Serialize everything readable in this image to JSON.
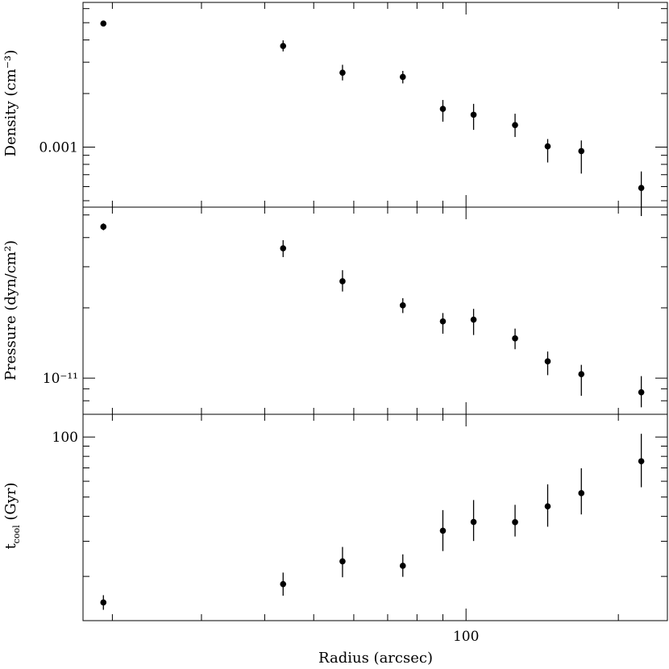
{
  "chart_data": {
    "type": "scatter",
    "xlabel": "Radius (arcsec)",
    "xscale": "log",
    "xlim": [
      17.5,
      250
    ],
    "x_ticks": [
      {
        "value": 100,
        "label": "100"
      }
    ],
    "panels": [
      {
        "id": "density",
        "ylabel": "Density (cm⁻³)",
        "yscale": "log",
        "ylim": [
          0.00046,
          0.0065
        ],
        "y_ticks": [
          {
            "value": 0.001,
            "label": "0.001"
          }
        ],
        "series": [
          {
            "x": [
              19.2,
              43.5,
              57,
              75,
              90,
              103.5,
              125,
              145,
              169,
              222
            ],
            "y": [
              0.00495,
              0.0037,
              0.00262,
              0.00248,
              0.00164,
              0.00152,
              0.00133,
              0.00101,
              0.00095,
              0.00059
            ],
            "yerr_lo": [
              0.00017,
              0.00025,
              0.00025,
              0.0002,
              0.00025,
              0.00027,
              0.00019,
              0.00019,
              0.00024,
              0.00018
            ],
            "yerr_hi": [
              0.00018,
              0.00028,
              0.00028,
              0.0002,
              0.0002,
              0.00023,
              0.00021,
              0.0001,
              0.00014,
              0.00014
            ]
          }
        ]
      },
      {
        "id": "pressure",
        "ylabel": "Pressure (dyn/cm²)",
        "yscale": "log",
        "ylim": [
          7e-12,
          5.4e-11
        ],
        "y_ticks": [
          {
            "value": 1e-11,
            "label": "10⁻¹¹"
          }
        ],
        "series": [
          {
            "x": [
              19.2,
              43.5,
              57,
              75,
              90,
              103.5,
              125,
              145,
              169,
              222
            ],
            "y": [
              4.45e-11,
              3.6e-11,
              2.6e-11,
              2.05e-11,
              1.75e-11,
              1.78e-11,
              1.48e-11,
              1.18e-11,
              1.04e-11,
              8.7e-12
            ],
            "yerr_lo": [
              1.5e-12,
              3e-12,
              2.5e-12,
              1.5e-12,
              2e-12,
              2.5e-12,
              1.5e-12,
              1.5e-12,
              2e-12,
              1.2e-12
            ],
            "yerr_hi": [
              1.5e-12,
              3e-12,
              3e-12,
              1.5e-12,
              1.5e-12,
              2e-12,
              1.5e-12,
              1.2e-12,
              1e-12,
              1.5e-12
            ]
          }
        ]
      },
      {
        "id": "tcool",
        "ylabel": "t",
        "ylabel_sub": "cool",
        "ylabel_suffix": " (Gyr)",
        "yscale": "log",
        "ylim": [
          12,
          130
        ],
        "y_ticks": [
          {
            "value": 100,
            "label": "100"
          }
        ],
        "series": [
          {
            "x": [
              19.2,
              43.5,
              57,
              75,
              90,
              103.5,
              125,
              145,
              169,
              222
            ],
            "y": [
              14.8,
              18.3,
              23.8,
              22.6,
              33.9,
              37.5,
              37.4,
              44.9,
              52.3,
              75.6
            ],
            "yerr_lo": [
              1.2,
              2.3,
              4,
              2.7,
              7.1,
              7.4,
              5.7,
              9.4,
              11.4,
              19.6
            ],
            "yerr_hi": [
              1.3,
              2.6,
              4.3,
              3.2,
              9.1,
              10.8,
              8.3,
              13,
              17.4,
              28.2
            ]
          }
        ]
      }
    ]
  }
}
